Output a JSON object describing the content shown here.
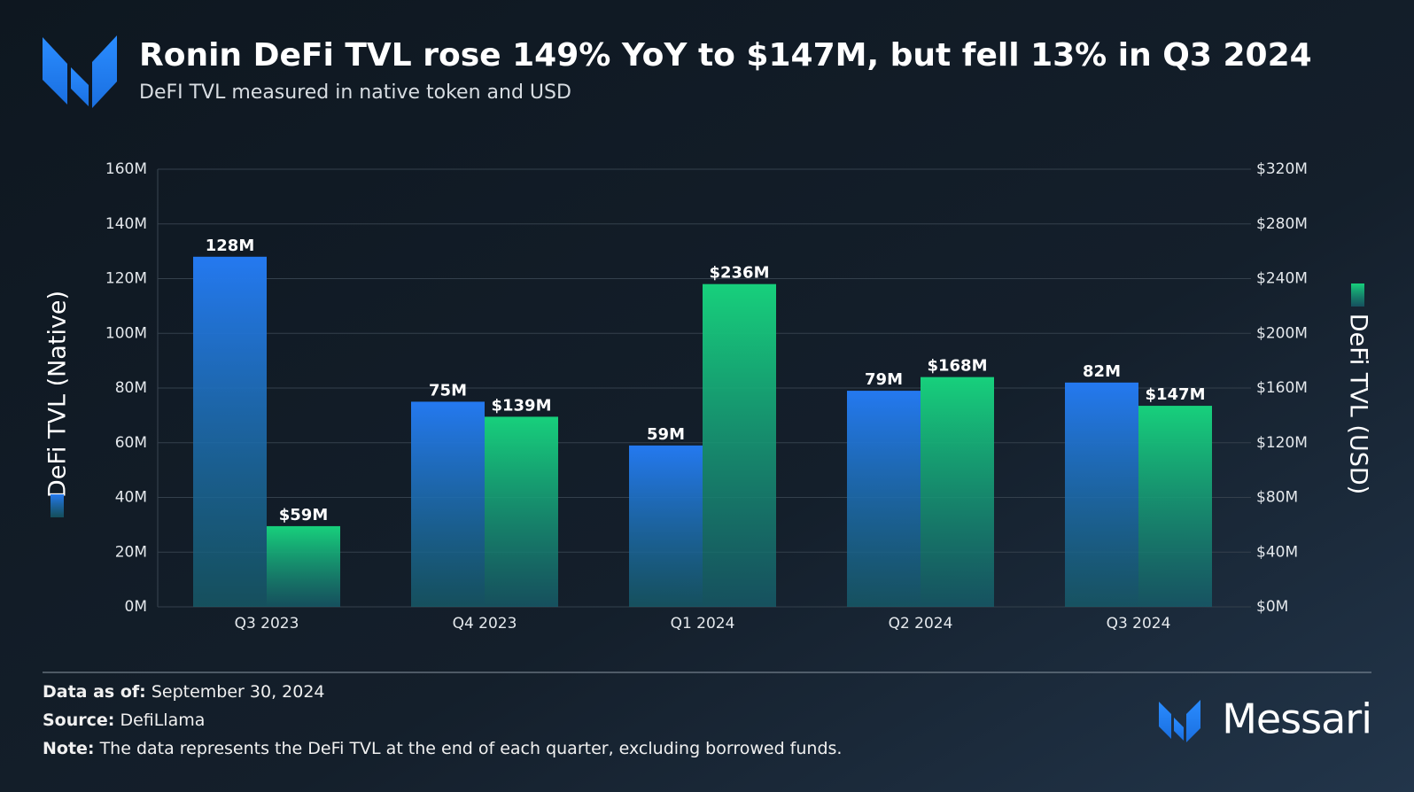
{
  "chart_data": {
    "type": "bar",
    "title": "Ronin DeFi TVL rose 149% YoY to $147M, but fell 13% in Q3 2024",
    "subtitle": "DeFI TVL measured in native token and USD",
    "categories": [
      "Q3 2023",
      "Q4 2023",
      "Q1 2024",
      "Q2 2024",
      "Q3 2024"
    ],
    "series": [
      {
        "name": "DeFi TVL (Native)",
        "color": "#2479f0",
        "values": [
          128,
          75,
          59,
          79,
          82
        ],
        "value_labels": [
          "128M",
          "75M",
          "59M",
          "79M",
          "82M"
        ]
      },
      {
        "name": "DeFi TVL (USD)",
        "color": "#17d07c",
        "axis": "y2",
        "values": [
          59,
          139,
          236,
          168,
          147
        ],
        "value_labels": [
          "$59M",
          "$139M",
          "$236M",
          "$168M",
          "$147M"
        ]
      }
    ],
    "ylim": [
      0,
      160
    ],
    "yticks": [
      {
        "value": 0,
        "label": "0M"
      },
      {
        "value": 20,
        "label": "20M"
      },
      {
        "value": 40,
        "label": "40M"
      },
      {
        "value": 60,
        "label": "60M"
      },
      {
        "value": 80,
        "label": "80M"
      },
      {
        "value": 100,
        "label": "100M"
      },
      {
        "value": 120,
        "label": "120M"
      },
      {
        "value": 140,
        "label": "140M"
      },
      {
        "value": 160,
        "label": "160M"
      }
    ],
    "y2lim": [
      0,
      320
    ],
    "y2ticks": [
      {
        "value": 0,
        "label": "$0M"
      },
      {
        "value": 40,
        "label": "$40M"
      },
      {
        "value": 80,
        "label": "$80M"
      },
      {
        "value": 120,
        "label": "$120M"
      },
      {
        "value": 160,
        "label": "$160M"
      },
      {
        "value": 200,
        "label": "$200M"
      },
      {
        "value": 240,
        "label": "$240M"
      },
      {
        "value": 280,
        "label": "$280M"
      },
      {
        "value": 320,
        "label": "$320M"
      }
    ],
    "grid": true
  },
  "footer": {
    "data_as_of": {
      "label": "Data as of:",
      "text": "September 30, 2024"
    },
    "source": {
      "label": "Source:",
      "text": "DefiLlama"
    },
    "note": {
      "label": "Note:",
      "text": "The data represents the DeFi TVL at the end of each quarter, excluding borrowed funds."
    }
  },
  "brand": "Messari"
}
